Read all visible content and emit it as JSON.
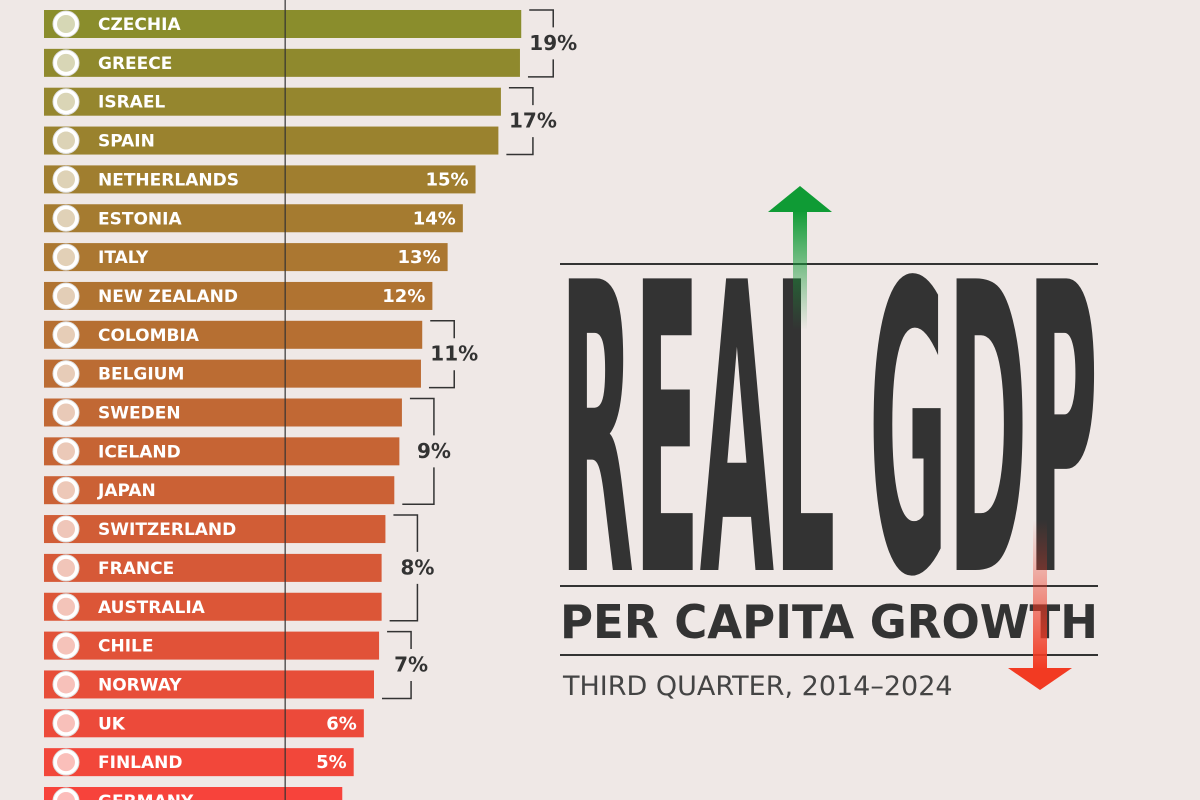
{
  "chart_data": {
    "type": "hbar",
    "title": "REAL GDP",
    "subtitle": "PER CAPITA GROWTH",
    "note": "THIRD QUARTER, 2014–2024",
    "categories": [
      "CZECHIA",
      "GREECE",
      "ISRAEL",
      "SPAIN",
      "NETHERLANDS",
      "ESTONIA",
      "ITALY",
      "NEW ZEALAND",
      "COLOMBIA",
      "BELGIUM",
      "SWEDEN",
      "ICELAND",
      "JAPAN",
      "SWITZERLAND",
      "FRANCE",
      "AUSTRALIA",
      "CHILE",
      "NORWAY",
      "UK",
      "FINLAND",
      "GERMANY"
    ],
    "values": [
      18.6,
      18.5,
      17.0,
      16.8,
      15.0,
      14.0,
      12.8,
      11.6,
      10.8,
      10.7,
      9.2,
      9.0,
      8.6,
      7.9,
      7.6,
      7.6,
      7.4,
      7.0,
      6.2,
      5.4,
      4.5
    ],
    "value_labels": [
      "19%",
      "19%",
      "17%",
      "17%",
      "15%",
      "14%",
      "13%",
      "12%",
      "11%",
      "11%",
      "9%",
      "9%",
      "9%",
      "8%",
      "8%",
      "8%",
      "7%",
      "7%",
      "6%",
      "5%",
      null
    ],
    "xlim": [
      -19,
      20
    ],
    "color_gradient": [
      "#8a8d2c",
      "#f7433b"
    ]
  }
}
